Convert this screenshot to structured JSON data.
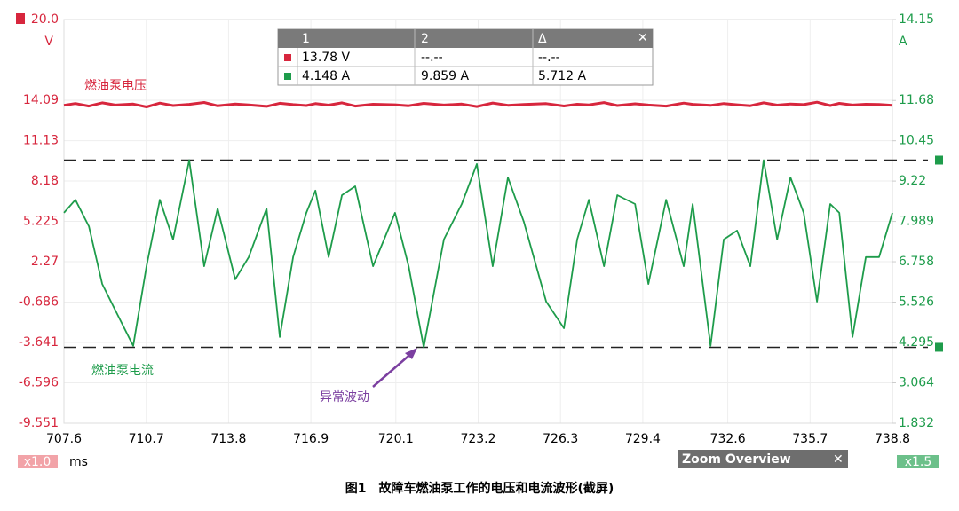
{
  "chart_data": {
    "type": "line",
    "xlabel": "ms",
    "ylabel": "V",
    "y2label": "A",
    "xlim": [
      707.6,
      738.8
    ],
    "xticks": [
      707.6,
      710.7,
      713.8,
      716.9,
      720.1,
      723.2,
      726.3,
      729.4,
      732.6,
      735.7,
      738.8
    ],
    "ylim": [
      -9.551,
      20
    ],
    "yticks": [
      -9.551,
      -6.596,
      -3.641,
      -0.686,
      2.27,
      5.225,
      8.18,
      11.13,
      14.09,
      {
        "value": 20,
        "label": "20.0"
      }
    ],
    "y2lim": [
      1.832,
      14.15
    ],
    "y2ticks": [
      1.832,
      3.064,
      4.295,
      5.526,
      6.758,
      7.989,
      9.22,
      10.45,
      11.68,
      14.15
    ],
    "grid": true,
    "x": [
      707.6,
      708.03,
      708.54,
      709.04,
      709.54,
      710.21,
      710.71,
      711.21,
      711.71,
      712.32,
      712.88,
      713.39,
      714.05,
      714.56,
      715.23,
      715.73,
      716.23,
      716.73,
      717.07,
      717.57,
      718.07,
      718.57,
      719.24,
      720.07,
      720.58,
      721.15,
      721.91,
      722.58,
      723.15,
      723.75,
      724.32,
      724.92,
      725.76,
      726.43,
      726.93,
      727.37,
      727.94,
      728.44,
      729.11,
      729.61,
      730.28,
      730.94,
      731.28,
      731.95,
      732.45,
      732.95,
      733.45,
      733.95,
      734.46,
      734.96,
      735.46,
      735.96,
      736.46,
      736.8,
      737.3,
      737.8,
      738.3,
      738.8
    ],
    "series": [
      {
        "name": "燃油泵电压",
        "color": "#d7263d",
        "values": [
          13.72,
          13.85,
          13.66,
          13.9,
          13.74,
          13.81,
          13.6,
          13.88,
          13.7,
          13.79,
          13.93,
          13.68,
          13.82,
          13.75,
          13.64,
          13.87,
          13.77,
          13.7,
          13.84,
          13.73,
          13.9,
          13.66,
          13.8,
          13.76,
          13.69,
          13.86,
          13.74,
          13.81,
          13.63,
          13.89,
          13.72,
          13.78,
          13.84,
          13.67,
          13.8,
          13.75,
          13.92,
          13.7,
          13.83,
          13.74,
          13.66,
          13.88,
          13.79,
          13.71,
          13.85,
          13.76,
          13.69,
          13.9,
          13.73,
          13.82,
          13.77,
          13.95,
          13.7,
          13.86,
          13.74,
          13.8,
          13.78,
          13.72
        ]
      },
      {
        "name": "燃油泵电流",
        "color": "#1e9c4b",
        "axis": "y2",
        "values": [
          8.25,
          8.65,
          7.84,
          6.08,
          5.27,
          4.19,
          6.62,
          8.65,
          7.44,
          9.86,
          6.62,
          8.38,
          6.22,
          6.9,
          8.38,
          4.46,
          6.9,
          8.25,
          8.93,
          6.9,
          8.79,
          9.06,
          6.62,
          8.25,
          6.62,
          4.15,
          7.44,
          8.52,
          9.74,
          6.62,
          9.33,
          7.98,
          5.54,
          4.73,
          7.44,
          8.65,
          6.62,
          8.79,
          8.52,
          6.08,
          8.65,
          6.62,
          8.52,
          4.19,
          7.44,
          7.71,
          6.62,
          9.86,
          7.44,
          9.33,
          8.25,
          5.54,
          8.52,
          8.25,
          4.46,
          6.9,
          6.9,
          8.25
        ]
      }
    ],
    "cursors": [
      {
        "value": 4.148,
        "label": "4.148 A"
      },
      {
        "value": 9.859,
        "label": "9.859 A"
      }
    ],
    "annotation": "异常波动"
  },
  "readout": {
    "headers": [
      "1",
      "2",
      "Δ"
    ],
    "voltage": [
      "13.78 V",
      "--.--",
      "--.--"
    ],
    "delta": "5.712 A"
  },
  "toolbar": {
    "left_zoom": "x1.0",
    "right_zoom": "x1.5",
    "overview": "Zoom Overview"
  },
  "caption": "图1　故障车燃油泵工作的电压和电流波形(截屏)"
}
